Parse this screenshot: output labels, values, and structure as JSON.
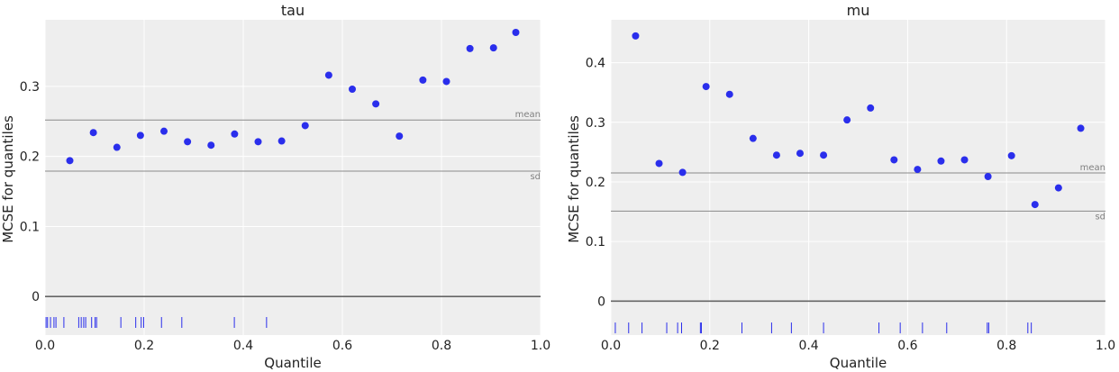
{
  "chart_data": [
    {
      "type": "scatter",
      "title": "tau",
      "xlabel": "Quantile",
      "ylabel": "MCSE for quantiles",
      "xlim": [
        0.0,
        1.0
      ],
      "ylim": [
        -0.055,
        0.395
      ],
      "xticks": [
        "0.0",
        "0.2",
        "0.4",
        "0.6",
        "0.8",
        "1.0"
      ],
      "yticks": [
        "0",
        "0.1",
        "0.2",
        "0.3"
      ],
      "grid": true,
      "point_color": "#2a2eec",
      "points": [
        [
          0.05,
          0.194
        ],
        [
          0.0975,
          0.234
        ],
        [
          0.145,
          0.213
        ],
        [
          0.1925,
          0.23
        ],
        [
          0.24,
          0.236
        ],
        [
          0.2875,
          0.221
        ],
        [
          0.335,
          0.216
        ],
        [
          0.3825,
          0.232
        ],
        [
          0.43,
          0.221
        ],
        [
          0.4775,
          0.222
        ],
        [
          0.525,
          0.244
        ],
        [
          0.5725,
          0.316
        ],
        [
          0.62,
          0.296
        ],
        [
          0.6675,
          0.275
        ],
        [
          0.715,
          0.229
        ],
        [
          0.7625,
          0.309
        ],
        [
          0.81,
          0.307
        ],
        [
          0.8575,
          0.354
        ],
        [
          0.905,
          0.355
        ],
        [
          0.95,
          0.377
        ]
      ],
      "reference_lines": [
        {
          "label": "mean",
          "value": 0.252
        },
        {
          "label": "sd",
          "value": 0.179
        }
      ],
      "rug_y": -0.037,
      "rug": [
        0.002,
        0.005,
        0.011,
        0.018,
        0.022,
        0.038,
        0.068,
        0.073,
        0.078,
        0.082,
        0.094,
        0.101,
        0.104,
        0.153,
        0.183,
        0.194,
        0.199,
        0.235,
        0.276,
        0.382,
        0.447
      ]
    },
    {
      "type": "scatter",
      "title": "mu",
      "xlabel": "Quantile",
      "ylabel": "MCSE for quantiles",
      "xlim": [
        0.0,
        1.0
      ],
      "ylim": [
        -0.057,
        0.472
      ],
      "xticks": [
        "0.0",
        "0.2",
        "0.4",
        "0.6",
        "0.8",
        "1.0"
      ],
      "yticks": [
        "0",
        "0.1",
        "0.2",
        "0.3",
        "0.4"
      ],
      "grid": true,
      "point_color": "#2a2eec",
      "points": [
        [
          0.05,
          0.445
        ],
        [
          0.0975,
          0.231
        ],
        [
          0.145,
          0.216
        ],
        [
          0.1925,
          0.36
        ],
        [
          0.24,
          0.347
        ],
        [
          0.2875,
          0.273
        ],
        [
          0.335,
          0.245
        ],
        [
          0.3825,
          0.248
        ],
        [
          0.43,
          0.245
        ],
        [
          0.4775,
          0.304
        ],
        [
          0.525,
          0.324
        ],
        [
          0.5725,
          0.237
        ],
        [
          0.62,
          0.221
        ],
        [
          0.6675,
          0.235
        ],
        [
          0.715,
          0.237
        ],
        [
          0.7625,
          0.209
        ],
        [
          0.81,
          0.244
        ],
        [
          0.8575,
          0.162
        ],
        [
          0.905,
          0.19
        ],
        [
          0.95,
          0.29
        ]
      ],
      "reference_lines": [
        {
          "label": "mean",
          "value": 0.215
        },
        {
          "label": "sd",
          "value": 0.151
        }
      ],
      "rug_y": -0.045,
      "rug": [
        0.009,
        0.036,
        0.063,
        0.113,
        0.135,
        0.143,
        0.181,
        0.183,
        0.265,
        0.325,
        0.365,
        0.43,
        0.542,
        0.585,
        0.63,
        0.679,
        0.761,
        0.764,
        0.843,
        0.85
      ]
    }
  ]
}
